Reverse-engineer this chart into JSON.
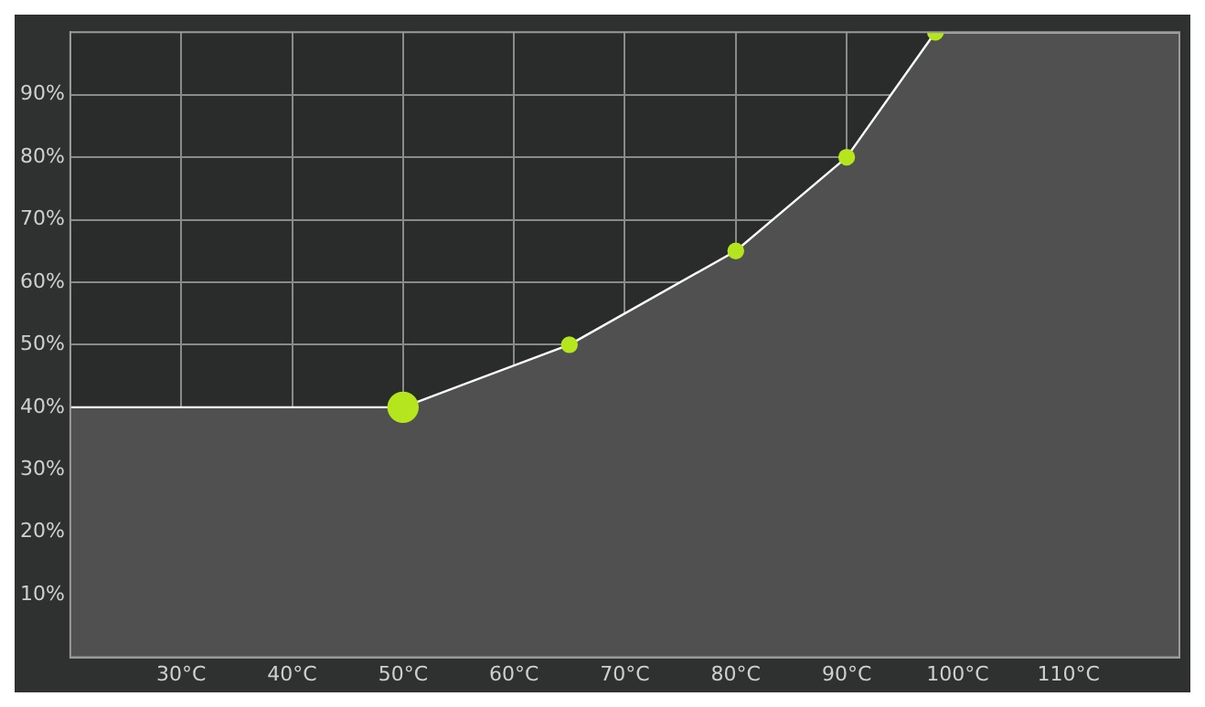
{
  "chart_data": {
    "type": "area",
    "x": [
      20,
      50,
      65,
      80,
      90,
      98,
      120
    ],
    "series": [
      {
        "color": "#b5e61d",
        "values": [
          40,
          40,
          50,
          65,
          80,
          100,
          100
        ]
      }
    ],
    "xlim": [
      20,
      120
    ],
    "ylim": [
      0,
      100
    ],
    "xticks": [
      {
        "value": 30,
        "label": "30°C"
      },
      {
        "value": 40,
        "label": "40°C"
      },
      {
        "value": 50,
        "label": "50°C"
      },
      {
        "value": 60,
        "label": "60°C"
      },
      {
        "value": 70,
        "label": "70°C"
      },
      {
        "value": 80,
        "label": "80°C"
      },
      {
        "value": 90,
        "label": "90°C"
      },
      {
        "value": 100,
        "label": "100°C"
      },
      {
        "value": 110,
        "label": "110°C"
      }
    ],
    "yticks": [
      {
        "value": 10,
        "label": "10%"
      },
      {
        "value": 20,
        "label": "20%"
      },
      {
        "value": 30,
        "label": "30%"
      },
      {
        "value": 40,
        "label": "40%"
      },
      {
        "value": 50,
        "label": "50%"
      },
      {
        "value": 60,
        "label": "60%"
      },
      {
        "value": 70,
        "label": "70%"
      },
      {
        "value": 80,
        "label": "80%"
      },
      {
        "value": 90,
        "label": "90%"
      }
    ],
    "grid": true,
    "legend": false,
    "marker": "circle"
  }
}
